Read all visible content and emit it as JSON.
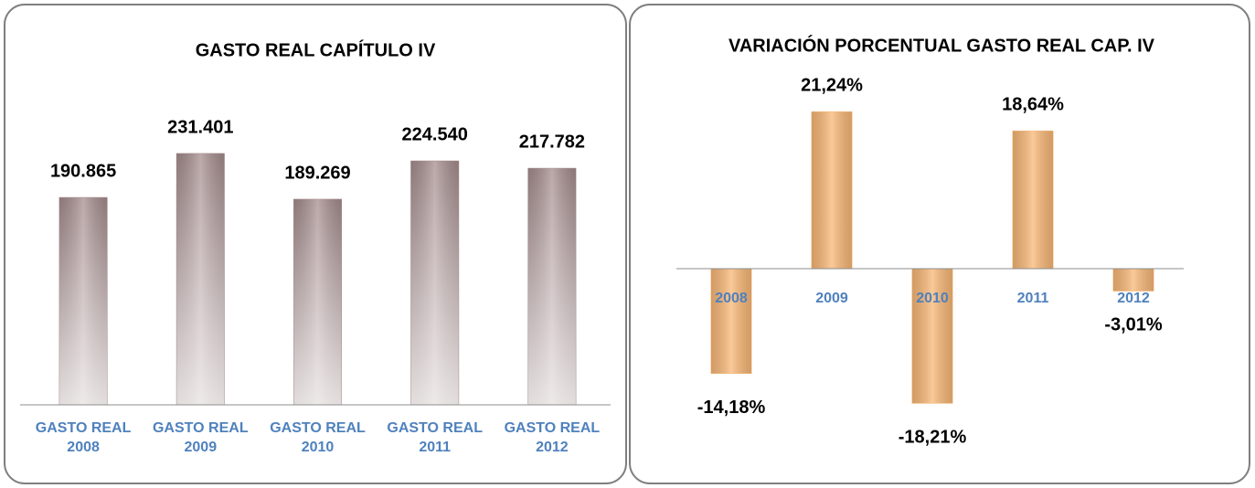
{
  "chart_data": [
    {
      "type": "bar",
      "title": "GASTO REAL CAPÍTULO IV",
      "categories": [
        "GASTO REAL 2008",
        "GASTO REAL 2009",
        "GASTO REAL 2010",
        "GASTO REAL 2011",
        "GASTO REAL 2012"
      ],
      "values": [
        190865,
        231401,
        189269,
        224540,
        217782
      ],
      "value_labels": [
        "190.865",
        "231.401",
        "189.269",
        "224.540",
        "217.782"
      ],
      "color": "#a68d8e",
      "ylim": [
        0,
        250000
      ]
    },
    {
      "type": "bar",
      "title": "VARIACIÓN PORCENTUAL GASTO REAL CAP. IV",
      "categories": [
        "2008",
        "2009",
        "2010",
        "2011",
        "2012"
      ],
      "values": [
        -14.18,
        21.24,
        -18.21,
        18.64,
        -3.01
      ],
      "value_labels": [
        "-14,18%",
        "21,24%",
        "-18,21%",
        "18,64%",
        "-3,01%"
      ],
      "color": "#f9b877",
      "ylim": [
        -25,
        25
      ]
    }
  ]
}
